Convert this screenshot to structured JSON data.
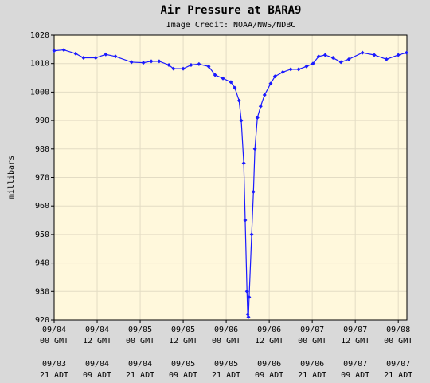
{
  "chart_data": {
    "type": "line",
    "title": "Air Pressure at BARA9",
    "subtitle": "Image Credit: NOAA/NWS/NDBC",
    "y_label": "millibars",
    "x": [
      0,
      2.7,
      6,
      8.2,
      11.6,
      14.4,
      17.1,
      21.6,
      24.9,
      27.1,
      29.3,
      32,
      33.3,
      36,
      38.2,
      40.4,
      43.1,
      44.9,
      47.1,
      49.3,
      50.4,
      51.6,
      52.2,
      52.9,
      53.3,
      53.8,
      54,
      54.2,
      54.4,
      55.1,
      55.6,
      56,
      56.7,
      57.6,
      58.7,
      60.4,
      61.6,
      63.8,
      66,
      68.2,
      70.4,
      72.2,
      73.8,
      75.6,
      77.8,
      80,
      82.2,
      86,
      89.3,
      92.7,
      96,
      98.3
    ],
    "series": [
      {
        "color": "#1a1aff",
        "values": [
          1014.5,
          1014.8,
          1013.5,
          1012,
          1012,
          1013.2,
          1012.5,
          1010.5,
          1010.3,
          1010.8,
          1010.8,
          1009.5,
          1008.2,
          1008.2,
          1009.5,
          1009.8,
          1009,
          1006,
          1004.8,
          1003.5,
          1001.5,
          997,
          990,
          975,
          955,
          930,
          922,
          921,
          928,
          950,
          965,
          980,
          991,
          995,
          999,
          1003,
          1005.5,
          1007,
          1008,
          1008,
          1009,
          1010,
          1012.5,
          1013,
          1012,
          1010.5,
          1011.5,
          1013.8,
          1013,
          1011.5,
          1013,
          1013.8
        ]
      }
    ],
    "xlim": [
      0,
      98.4
    ],
    "xticks": [
      {
        "value": 0,
        "label": [
          "09/04",
          "00 GMT"
        ]
      },
      {
        "value": 12,
        "label": [
          "09/04",
          "12 GMT"
        ]
      },
      {
        "value": 24,
        "label": [
          "09/05",
          "00 GMT"
        ]
      },
      {
        "value": 36,
        "label": [
          "09/05",
          "12 GMT"
        ]
      },
      {
        "value": 48,
        "label": [
          "09/06",
          "00 GMT"
        ]
      },
      {
        "value": 60,
        "label": [
          "09/06",
          "12 GMT"
        ]
      },
      {
        "value": 72,
        "label": [
          "09/07",
          "00 GMT"
        ]
      },
      {
        "value": 84,
        "label": [
          "09/07",
          "12 GMT"
        ]
      },
      {
        "value": 96,
        "label": [
          "09/08",
          "00 GMT"
        ]
      }
    ],
    "xticks_local": [
      [
        "09/03",
        "21 ADT"
      ],
      [
        "09/04",
        "09 ADT"
      ],
      [
        "09/04",
        "21 ADT"
      ],
      [
        "09/05",
        "09 ADT"
      ],
      [
        "09/05",
        "21 ADT"
      ],
      [
        "09/06",
        "09 ADT"
      ],
      [
        "09/06",
        "21 ADT"
      ],
      [
        "09/07",
        "09 ADT"
      ],
      [
        "09/07",
        "21 ADT"
      ]
    ],
    "ylim": [
      920,
      1020
    ],
    "yticks": [
      920,
      930,
      940,
      950,
      960,
      970,
      980,
      990,
      1000,
      1010,
      1020
    ],
    "grid": true
  }
}
